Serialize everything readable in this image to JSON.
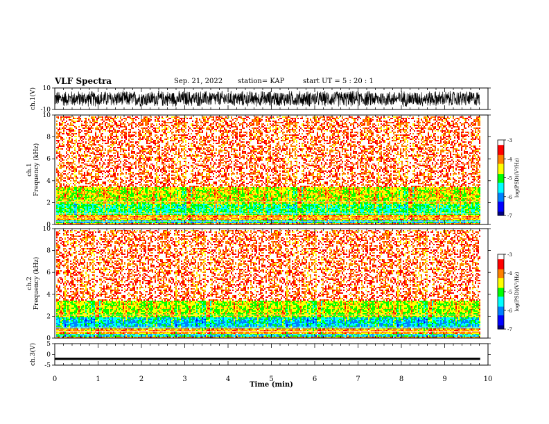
{
  "header": {
    "title": "VLF Spectra",
    "date": "Sep. 21, 2022",
    "station": "station= KAP",
    "start": "start  UT  =   5  : 20 : 1"
  },
  "colors": {
    "background": "#ffffff",
    "axis": "#000000",
    "colormap": [
      "#000080",
      "#0000ff",
      "#0080ff",
      "#00ffff",
      "#00ff00",
      "#ffff00",
      "#ff8000",
      "#ff0000",
      "#ffffff"
    ]
  },
  "chart_data": [
    {
      "type": "line",
      "ylabel": "ch.1(V)",
      "yticks": [
        10,
        -10
      ],
      "ylim": [
        -10,
        10
      ],
      "description_series": "raw waveform, dense oscillation between about -8 V and +8 V"
    },
    {
      "type": "heatmap",
      "ylabel": "ch.1\nFrequency (kHz)",
      "yticks": [
        0,
        2,
        4,
        6,
        8,
        10
      ],
      "ylim": [
        0,
        10
      ],
      "colorbar": {
        "label": "log(PSD)(V²/Hz)",
        "ticks": [
          -3,
          -4,
          -5,
          -6,
          -7
        ],
        "range": [
          -7,
          -3
        ]
      },
      "bands": [
        {
          "from_khz": 0.2,
          "to_khz": 0.5,
          "level": -5.5
        },
        {
          "from_khz": 1.0,
          "to_khz": 2.0,
          "level": -5.2
        },
        {
          "from_khz": 2.0,
          "to_khz": 3.5,
          "level": -4.6
        },
        {
          "from_khz": 3.5,
          "to_khz": 10.0,
          "level": -3.8
        }
      ]
    },
    {
      "type": "heatmap",
      "ylabel": "ch.2\nFrequency (kHz)",
      "yticks": [
        0,
        2,
        4,
        6,
        8,
        10
      ],
      "ylim": [
        0,
        10
      ],
      "colorbar": {
        "label": "log(PSD)(V²/Hz)",
        "ticks": [
          -3,
          -4,
          -5,
          -6,
          -7
        ],
        "range": [
          -7,
          -3
        ]
      },
      "bands": [
        {
          "from_khz": 0.2,
          "to_khz": 0.5,
          "level": -5.5
        },
        {
          "from_khz": 1.0,
          "to_khz": 2.0,
          "level": -5.6
        },
        {
          "from_khz": 2.0,
          "to_khz": 3.5,
          "level": -4.7
        },
        {
          "from_khz": 3.5,
          "to_khz": 10.0,
          "level": -3.8
        }
      ]
    },
    {
      "type": "line",
      "ylabel": "ch.3(V)",
      "yticks": [
        5,
        0,
        -5
      ],
      "ylim": [
        -5,
        5
      ],
      "description_series": "near-constant waveform at about -2 V"
    }
  ],
  "xaxis": {
    "label": "Time (min)",
    "ticks": [
      0,
      1,
      2,
      3,
      4,
      5,
      6,
      7,
      8,
      9,
      10
    ],
    "xlim": [
      0,
      10
    ],
    "data_end_min": 9.82
  }
}
